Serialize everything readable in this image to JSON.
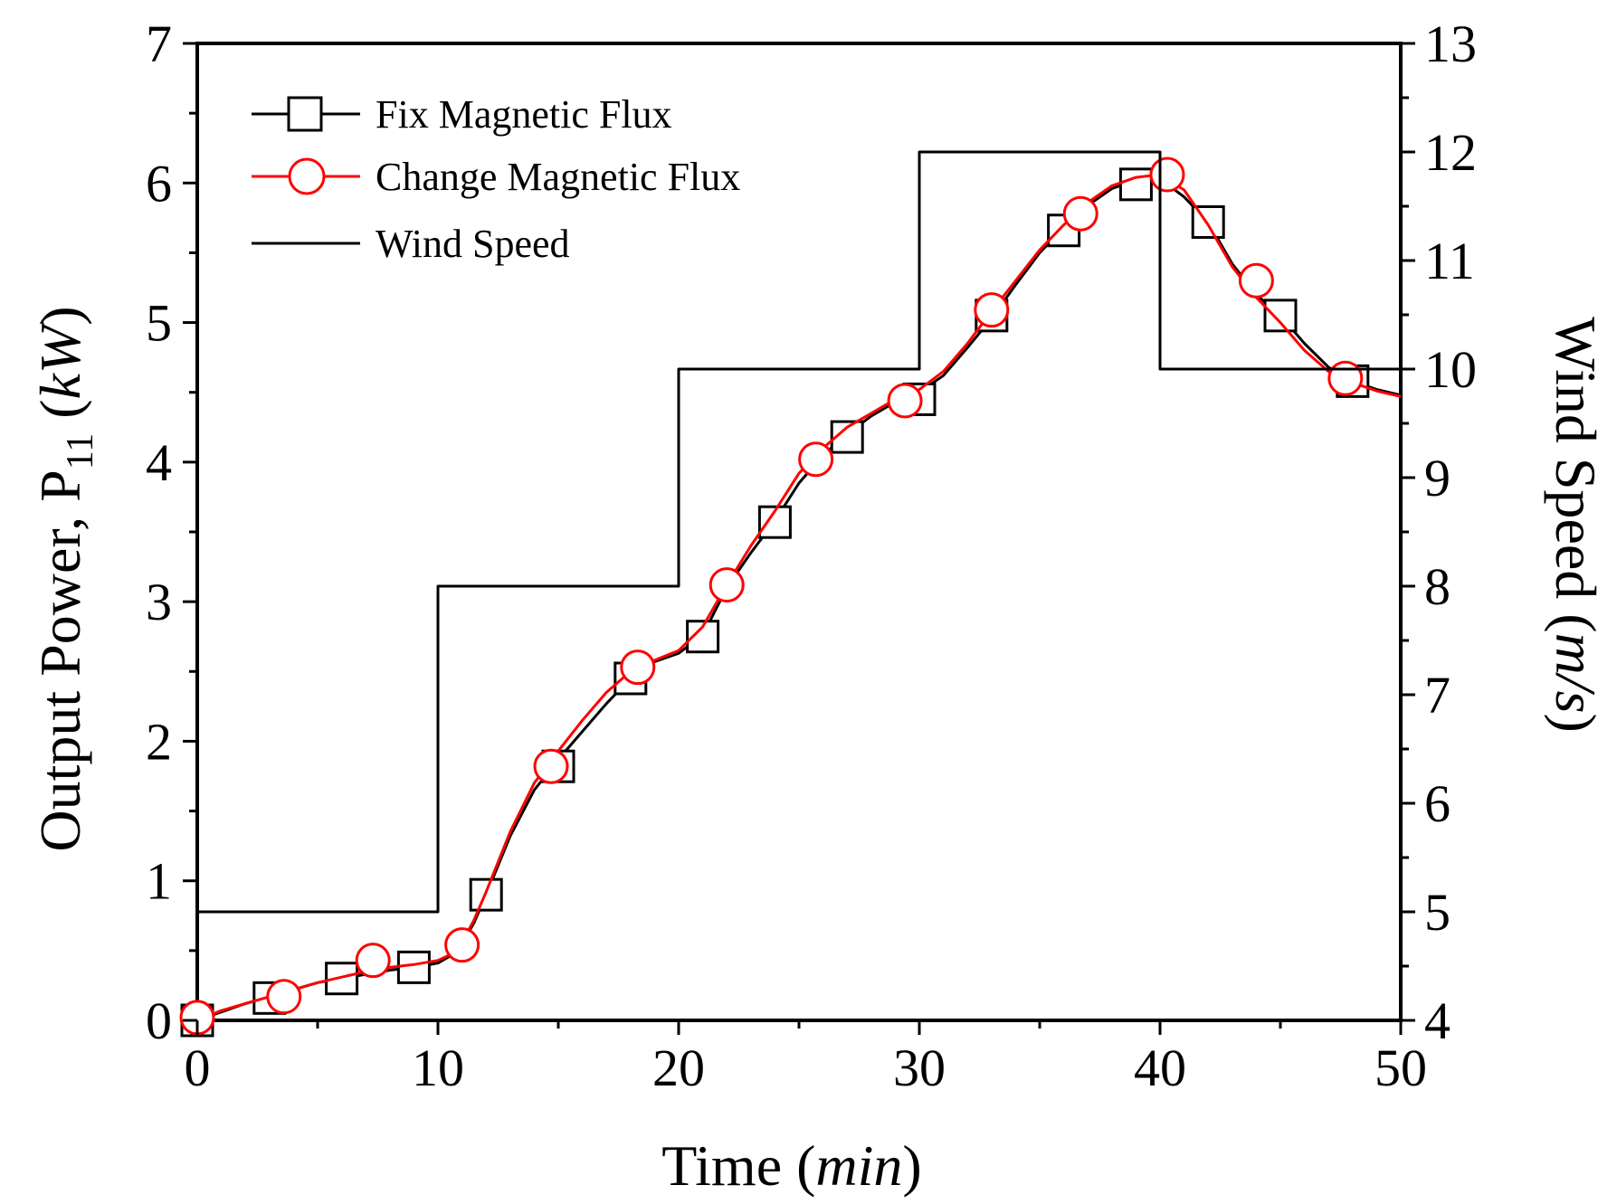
{
  "chart_data": {
    "type": "line",
    "title": "",
    "xlabel": "Time",
    "xlabel_unit": "min",
    "ylabel": "Output Power, P",
    "ylabel_subscript": "11",
    "ylabel_unit": "kW",
    "y2label": "Wind Speed",
    "y2label_unit": "m/s",
    "xlim": [
      0,
      50
    ],
    "ylim": [
      0,
      7
    ],
    "y2lim": [
      4,
      13
    ],
    "x_ticks": [
      "0",
      "10",
      "20",
      "30",
      "40",
      "50"
    ],
    "y_ticks": [
      "0",
      "1",
      "2",
      "3",
      "4",
      "5",
      "6",
      "7"
    ],
    "y2_ticks": [
      "4",
      "5",
      "6",
      "7",
      "8",
      "9",
      "10",
      "11",
      "12",
      "13"
    ],
    "grid": false,
    "legend_position": "top-left",
    "series": [
      {
        "name": "Fix Magnetic Flux",
        "axis": "left",
        "color": "#000000",
        "marker": "square",
        "line_x": [
          0,
          1,
          2,
          3,
          4,
          5,
          6,
          7,
          8,
          9,
          10,
          10.5,
          11,
          11.5,
          12,
          13,
          14,
          15,
          16,
          17,
          18,
          19,
          20,
          21,
          22,
          23,
          24,
          25,
          26,
          27,
          28,
          29,
          30,
          31,
          32,
          33,
          34,
          35,
          36,
          37,
          38,
          39,
          40,
          41,
          42,
          43,
          44,
          45,
          46,
          47,
          48,
          49,
          50
        ],
        "line_y": [
          0.0,
          0.06,
          0.12,
          0.17,
          0.22,
          0.27,
          0.3,
          0.33,
          0.36,
          0.38,
          0.41,
          0.46,
          0.55,
          0.7,
          0.9,
          1.32,
          1.65,
          1.87,
          2.07,
          2.27,
          2.45,
          2.57,
          2.63,
          2.76,
          3.1,
          3.35,
          3.58,
          3.85,
          4.05,
          4.2,
          4.33,
          4.43,
          4.5,
          4.62,
          4.82,
          5.03,
          5.27,
          5.5,
          5.68,
          5.84,
          5.96,
          6.02,
          6.03,
          5.9,
          5.72,
          5.42,
          5.2,
          5.05,
          4.85,
          4.68,
          4.58,
          4.52,
          4.48
        ],
        "marker_x": [
          0,
          3,
          6,
          9,
          12,
          15,
          18,
          21,
          24,
          27,
          30,
          33,
          36,
          39,
          42,
          45,
          48
        ],
        "marker_y": [
          0.0,
          0.16,
          0.3,
          0.38,
          0.9,
          1.82,
          2.45,
          2.75,
          3.57,
          4.18,
          4.45,
          5.05,
          5.66,
          5.99,
          5.72,
          5.05,
          4.58
        ]
      },
      {
        "name": "Change Magnetic Flux",
        "axis": "left",
        "color": "#ff0000",
        "marker": "circle",
        "line_x": [
          0,
          1,
          2,
          3,
          4,
          5,
          6,
          7,
          8,
          9,
          10,
          10.5,
          11,
          11.5,
          12,
          13,
          14,
          15,
          16,
          17,
          18,
          19,
          20,
          21,
          22,
          23,
          24,
          25,
          26,
          27,
          28,
          29,
          30,
          31,
          32,
          33,
          34,
          35,
          36,
          37,
          38,
          39,
          40,
          41,
          42,
          43,
          44,
          45,
          46,
          47,
          48,
          49,
          50
        ],
        "line_y": [
          0.0,
          0.07,
          0.12,
          0.17,
          0.22,
          0.27,
          0.31,
          0.35,
          0.38,
          0.4,
          0.43,
          0.47,
          0.56,
          0.72,
          0.92,
          1.35,
          1.7,
          1.93,
          2.15,
          2.35,
          2.5,
          2.58,
          2.65,
          2.82,
          3.12,
          3.4,
          3.65,
          3.92,
          4.1,
          4.25,
          4.35,
          4.45,
          4.52,
          4.65,
          4.85,
          5.08,
          5.3,
          5.52,
          5.7,
          5.86,
          5.98,
          6.04,
          6.06,
          5.95,
          5.7,
          5.4,
          5.18,
          5.0,
          4.8,
          4.65,
          4.57,
          4.51,
          4.47
        ],
        "marker_x": [
          0,
          3.6,
          7.3,
          11,
          14.7,
          18.3,
          22,
          25.7,
          29.4,
          33,
          36.7,
          40.3,
          44,
          47.7
        ],
        "marker_y": [
          0.02,
          0.17,
          0.43,
          0.54,
          1.82,
          2.53,
          3.12,
          4.02,
          4.44,
          5.09,
          5.78,
          6.06,
          5.3,
          4.6
        ]
      },
      {
        "name": "Wind Speed",
        "axis": "right",
        "color": "#000000",
        "marker": "none",
        "line_x": [
          0,
          10,
          10,
          20,
          20,
          30,
          30,
          40,
          40,
          50
        ],
        "line_y": [
          5,
          5,
          8,
          8,
          10,
          10,
          12,
          12,
          10,
          10
        ]
      }
    ]
  }
}
